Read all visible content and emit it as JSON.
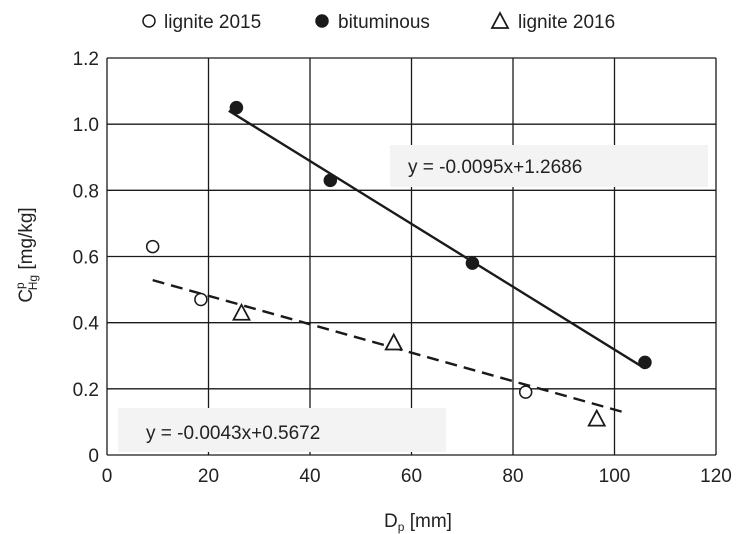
{
  "chart_data": {
    "type": "scatter",
    "xlabel": {
      "main": "D",
      "sub": "p",
      "unit": " [mm]"
    },
    "ylabel": {
      "main": "C",
      "sup": "p",
      "sub": "Hg",
      "unit": " [mg/kg]"
    },
    "xlim": [
      0,
      120
    ],
    "ylim": [
      0,
      1.2
    ],
    "x_ticks": [
      "0",
      "20",
      "40",
      "60",
      "80",
      "100",
      "120"
    ],
    "y_ticks": [
      "0",
      "0.2",
      "0.4",
      "0.6",
      "0.8",
      "1.0",
      "1.2"
    ],
    "grid": true,
    "legend_position": "top",
    "series": [
      {
        "name": "lignite 2015",
        "marker": "open-circle",
        "x": [
          9,
          18.5,
          82.5
        ],
        "y": [
          0.63,
          0.47,
          0.19
        ]
      },
      {
        "name": "bituminous",
        "marker": "filled-circle",
        "x": [
          25.5,
          44,
          72,
          106
        ],
        "y": [
          1.05,
          0.83,
          0.58,
          0.28
        ]
      },
      {
        "name": "lignite 2016",
        "marker": "open-triangle",
        "x": [
          26.5,
          56.5,
          96.5
        ],
        "y": [
          0.43,
          0.34,
          0.11
        ]
      }
    ],
    "trendlines": [
      {
        "equation": "y = -0.0095x+1.2686",
        "style": "solid",
        "slope": -0.0095,
        "intercept": 1.2686,
        "x_range": [
          24,
          106
        ]
      },
      {
        "equation": "y = -0.0043x+0.5672",
        "style": "dashed",
        "slope": -0.0043,
        "intercept": 0.5672,
        "x_range": [
          9,
          102
        ]
      }
    ],
    "colors": {
      "marker": "#1a1a1a",
      "grid": "#1a1a1a",
      "label_box": "#f3f3f3"
    }
  }
}
